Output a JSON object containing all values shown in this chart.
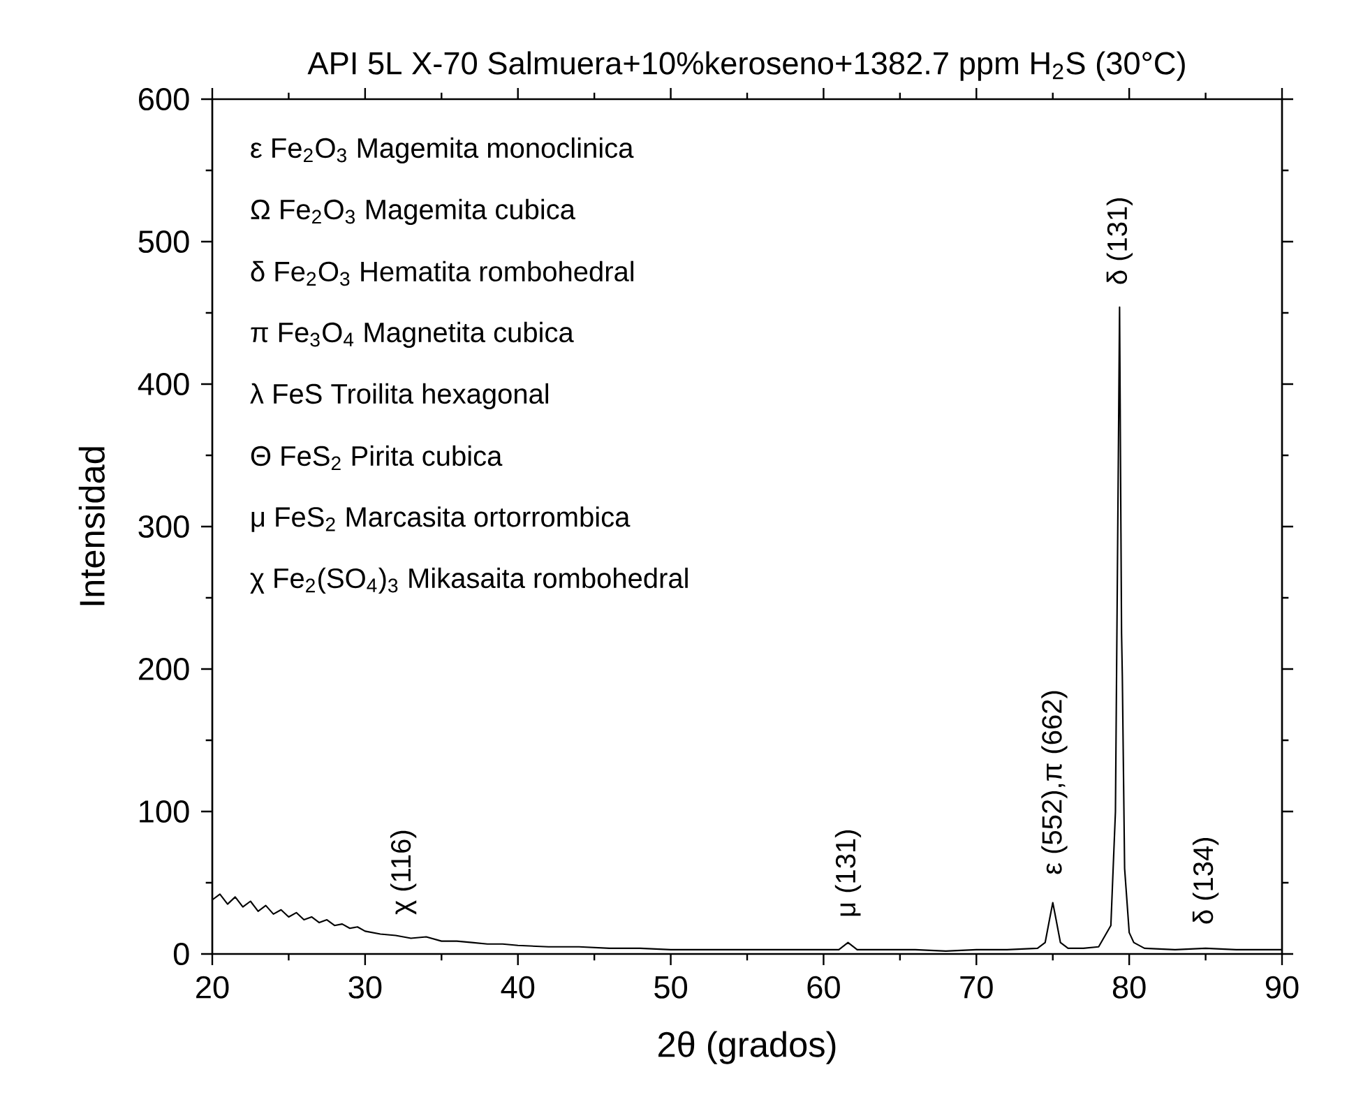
{
  "chart_data": {
    "type": "line",
    "title": "API 5L X-70 Salmuera+10%keroseno+1382.7 ppm H$_{2}$S (30°C)",
    "xlabel": "2θ (grados)",
    "ylabel": "Intensidad",
    "xlim": [
      20,
      90
    ],
    "ylim": [
      0,
      600
    ],
    "xticks": [
      20,
      30,
      40,
      50,
      60,
      70,
      80,
      90
    ],
    "yticks": [
      0,
      100,
      200,
      300,
      400,
      500,
      600
    ],
    "series": [
      {
        "color": "#000000",
        "x": [
          20,
          20.5,
          21,
          21.5,
          22,
          22.5,
          23,
          23.5,
          24,
          24.5,
          25,
          25.5,
          26,
          26.5,
          27,
          27.5,
          28,
          28.5,
          29,
          29.5,
          30,
          31,
          32,
          33,
          34,
          35,
          36,
          37,
          38,
          39,
          40,
          42,
          44,
          46,
          48,
          50,
          52,
          54,
          56,
          58,
          60,
          61,
          61.6,
          62.2,
          64,
          66,
          68,
          70,
          72,
          74,
          74.5,
          74.8,
          75.0,
          75.2,
          75.5,
          76,
          77,
          78,
          78.8,
          79.1,
          79.37,
          79.5,
          79.55,
          79.7,
          80.0,
          80.3,
          81,
          83,
          85,
          87,
          90
        ],
        "values": [
          38,
          42,
          35,
          40,
          33,
          37,
          30,
          34,
          28,
          31,
          26,
          29,
          24,
          26,
          22,
          24,
          20,
          21,
          18,
          19,
          16,
          14,
          13,
          11,
          12,
          9,
          9,
          8,
          7,
          7,
          6,
          5,
          5,
          4,
          4,
          3,
          3,
          3,
          3,
          3,
          3,
          3,
          8,
          3,
          3,
          3,
          2,
          3,
          3,
          4,
          8,
          25,
          36,
          25,
          8,
          4,
          4,
          5,
          20,
          100,
          454,
          225,
          195,
          60,
          15,
          8,
          4,
          3,
          4,
          3,
          3
        ]
      }
    ],
    "annotations": [
      "ε Fe$_{2}$O$_{3}$ Magemita monoclinica",
      "Ω Fe$_{2}$O$_{3}$ Magemita cubica",
      "δ Fe$_{2}$O$_{3}$ Hematita rombohedral",
      "π Fe$_{3}$O$_{4}$ Magnetita cubica",
      "λ FeS Troilita hexagonal",
      "Θ FeS$_{2}$ Pirita cubica",
      "μ FeS$_{2}$ Marcasita ortorrombica",
      "χ Fe$_{2}$(SO$_{4}$)$_{3}$ Mikasaita rombohedral",
      {
        "text": "χ (116)",
        "x": 32.5,
        "y": 12
      },
      {
        "text": "μ (131)",
        "x": 61.6,
        "y": 10
      },
      {
        "text": "ε (552),π (662)",
        "x": 75.1,
        "y": 40
      },
      {
        "text": "δ (131)",
        "x": 79.37,
        "y": 454
      },
      {
        "text": "δ (134)",
        "x": 85,
        "y": 5
      }
    ]
  }
}
